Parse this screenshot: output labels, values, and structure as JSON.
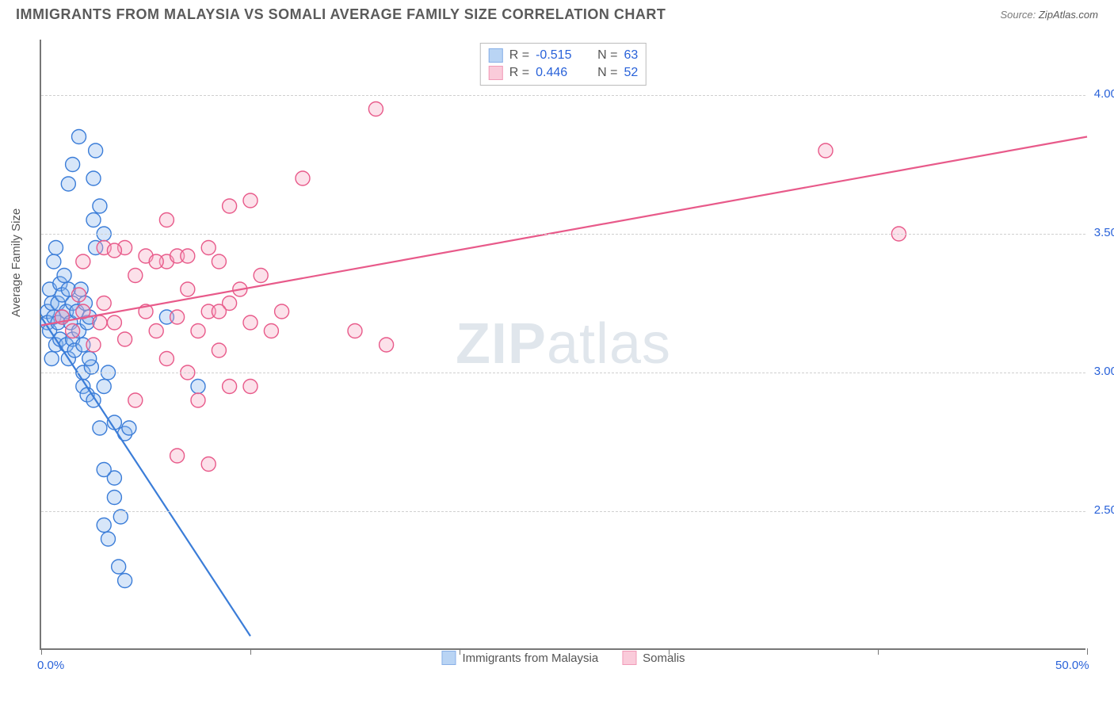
{
  "header": {
    "title": "IMMIGRANTS FROM MALAYSIA VS SOMALI AVERAGE FAMILY SIZE CORRELATION CHART",
    "source_prefix": "Source: ",
    "source_name": "ZipAtlas.com"
  },
  "watermark": {
    "zip": "ZIP",
    "atlas": "atlas"
  },
  "chart": {
    "type": "scatter-with-regression",
    "ylabel": "Average Family Size",
    "xlim": [
      0,
      50
    ],
    "ylim": [
      2.0,
      4.2
    ],
    "xtick_positions": [
      0,
      10,
      20,
      30,
      40,
      50
    ],
    "xtick_labels": {
      "0": "0.0%",
      "50": "50.0%"
    },
    "ytick_positions": [
      2.5,
      3.0,
      3.5,
      4.0
    ],
    "ytick_labels": [
      "2.50",
      "3.00",
      "3.50",
      "4.00"
    ],
    "grid_color": "#d0d0d0",
    "axis_color": "#777777",
    "background_color": "#ffffff",
    "label_fontsize": 15,
    "tick_fontsize": 15,
    "tick_color": "#2962d9",
    "marker_radius": 9,
    "marker_stroke_width": 1.4,
    "marker_fill_opacity": 0.35,
    "regression_line_width": 2.2,
    "series": [
      {
        "name": "Immigrants from Malaysia",
        "color_stroke": "#3b7dd8",
        "color_fill": "#8cb8ee",
        "R": "-0.515",
        "N": "63",
        "regression": {
          "x1": 0,
          "y1": 3.2,
          "x2": 10,
          "y2": 2.05
        },
        "points": [
          [
            0.3,
            3.22
          ],
          [
            0.3,
            3.18
          ],
          [
            0.4,
            3.3
          ],
          [
            0.4,
            3.15
          ],
          [
            0.5,
            3.25
          ],
          [
            0.5,
            3.05
          ],
          [
            0.6,
            3.4
          ],
          [
            0.6,
            3.2
          ],
          [
            0.7,
            3.1
          ],
          [
            0.7,
            3.45
          ],
          [
            0.8,
            3.25
          ],
          [
            0.8,
            3.18
          ],
          [
            0.9,
            3.32
          ],
          [
            0.9,
            3.12
          ],
          [
            1.0,
            3.28
          ],
          [
            1.0,
            3.2
          ],
          [
            1.1,
            3.35
          ],
          [
            1.2,
            3.22
          ],
          [
            1.2,
            3.1
          ],
          [
            1.3,
            3.05
          ],
          [
            1.3,
            3.3
          ],
          [
            1.4,
            3.18
          ],
          [
            1.5,
            3.25
          ],
          [
            1.5,
            3.12
          ],
          [
            1.6,
            3.08
          ],
          [
            1.7,
            3.22
          ],
          [
            1.8,
            3.15
          ],
          [
            1.9,
            3.3
          ],
          [
            2.0,
            3.1
          ],
          [
            2.0,
            3.0
          ],
          [
            2.1,
            3.25
          ],
          [
            2.2,
            3.18
          ],
          [
            2.3,
            3.2
          ],
          [
            2.4,
            3.02
          ],
          [
            2.5,
            3.55
          ],
          [
            2.5,
            3.7
          ],
          [
            2.6,
            3.45
          ],
          [
            2.8,
            3.6
          ],
          [
            3.0,
            3.5
          ],
          [
            1.8,
            3.85
          ],
          [
            1.5,
            3.75
          ],
          [
            1.3,
            3.68
          ],
          [
            2.0,
            2.95
          ],
          [
            2.2,
            2.92
          ],
          [
            2.3,
            3.05
          ],
          [
            2.5,
            2.9
          ],
          [
            2.8,
            2.8
          ],
          [
            3.0,
            2.95
          ],
          [
            3.2,
            3.0
          ],
          [
            3.5,
            2.82
          ],
          [
            3.0,
            2.45
          ],
          [
            3.2,
            2.4
          ],
          [
            3.5,
            2.55
          ],
          [
            3.8,
            2.48
          ],
          [
            3.5,
            2.62
          ],
          [
            3.0,
            2.65
          ],
          [
            4.0,
            2.78
          ],
          [
            4.2,
            2.8
          ],
          [
            3.7,
            2.3
          ],
          [
            4.0,
            2.25
          ],
          [
            6.0,
            3.2
          ],
          [
            7.5,
            2.95
          ],
          [
            2.6,
            3.8
          ]
        ]
      },
      {
        "name": "Somalis",
        "color_stroke": "#e85a8a",
        "color_fill": "#f7aac2",
        "R": "0.446",
        "N": "52",
        "regression": {
          "x1": 0,
          "y1": 3.17,
          "x2": 50,
          "y2": 3.85
        },
        "points": [
          [
            1.0,
            3.2
          ],
          [
            1.5,
            3.15
          ],
          [
            2.0,
            3.22
          ],
          [
            2.5,
            3.1
          ],
          [
            3.0,
            3.25
          ],
          [
            3.5,
            3.18
          ],
          [
            4.0,
            3.12
          ],
          [
            4.5,
            3.35
          ],
          [
            5.0,
            3.22
          ],
          [
            5.5,
            3.15
          ],
          [
            6.0,
            3.4
          ],
          [
            6.5,
            3.2
          ],
          [
            7.0,
            3.3
          ],
          [
            7.5,
            3.15
          ],
          [
            8.0,
            3.22
          ],
          [
            8.5,
            3.08
          ],
          [
            9.0,
            3.25
          ],
          [
            9.5,
            3.3
          ],
          [
            10.0,
            3.18
          ],
          [
            10.5,
            3.35
          ],
          [
            11.0,
            3.15
          ],
          [
            6.0,
            3.05
          ],
          [
            7.0,
            3.0
          ],
          [
            8.0,
            3.45
          ],
          [
            5.0,
            3.42
          ],
          [
            4.0,
            3.45
          ],
          [
            6.5,
            3.42
          ],
          [
            8.5,
            3.4
          ],
          [
            9.0,
            2.95
          ],
          [
            10.0,
            2.95
          ],
          [
            4.5,
            2.9
          ],
          [
            7.5,
            2.9
          ],
          [
            3.0,
            3.45
          ],
          [
            6.0,
            3.55
          ],
          [
            11.5,
            3.22
          ],
          [
            10.0,
            3.62
          ],
          [
            12.5,
            3.7
          ],
          [
            9.0,
            3.6
          ],
          [
            16.5,
            3.1
          ],
          [
            15.0,
            3.15
          ],
          [
            6.5,
            2.7
          ],
          [
            8.0,
            2.67
          ],
          [
            16.0,
            3.95
          ],
          [
            37.5,
            3.8
          ],
          [
            41.0,
            3.5
          ],
          [
            2.0,
            3.4
          ],
          [
            3.5,
            3.44
          ],
          [
            5.5,
            3.4
          ],
          [
            7.0,
            3.42
          ],
          [
            8.5,
            3.22
          ],
          [
            2.8,
            3.18
          ],
          [
            1.8,
            3.28
          ]
        ]
      }
    ],
    "legend_top": {
      "R_label": "R =",
      "N_label": "N ="
    }
  }
}
